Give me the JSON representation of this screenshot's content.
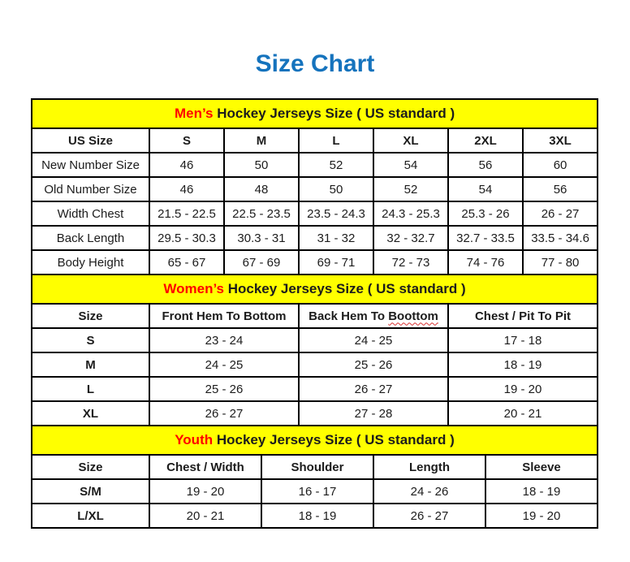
{
  "page": {
    "title": "Size Chart",
    "colors": {
      "title_blue": "#1573BD",
      "band_yellow": "#FFFF00",
      "highlight_red": "#FF0000",
      "text_black": "#1c1c1c",
      "border_black": "#000000"
    }
  },
  "sections": [
    {
      "id": "mens",
      "header": {
        "highlight": "Men’s",
        "rest": " Hockey Jerseys Size ( US standard )"
      },
      "columns": [
        "US Size",
        "S",
        "M",
        "L",
        "XL",
        "2XL",
        "3XL"
      ],
      "rows": [
        {
          "label": "New Number Size",
          "values": [
            "46",
            "50",
            "52",
            "54",
            "56",
            "60"
          ]
        },
        {
          "label": "Old Number Size",
          "values": [
            "46",
            "48",
            "50",
            "52",
            "54",
            "56"
          ]
        },
        {
          "label": "Width Chest",
          "values": [
            "21.5 - 22.5",
            "22.5 - 23.5",
            "23.5 - 24.3",
            "24.3 - 25.3",
            "25.3 - 26",
            "26 - 27"
          ]
        },
        {
          "label": "Back Length",
          "values": [
            "29.5 - 30.3",
            "30.3 - 31",
            "31 - 32",
            "32 - 32.7",
            "32.7 - 33.5",
            "33.5 - 34.6"
          ]
        },
        {
          "label": "Body Height",
          "values": [
            "65 - 67",
            "67 - 69",
            "69 - 71",
            "72 - 73",
            "74 - 76",
            "77 - 80"
          ]
        }
      ]
    },
    {
      "id": "womens",
      "header": {
        "highlight": "Women’s",
        "rest": " Hockey Jerseys Size ( US standard )"
      },
      "columns": [
        "Size",
        "Front Hem To Bottom",
        "Back Hem To Boottom",
        "Chest / Pit To Pit"
      ],
      "misspelled_column": {
        "before": "Back Hem To ",
        "word": "Boottom"
      },
      "rows": [
        {
          "label": "S",
          "values": [
            "23 - 24",
            "24 - 25",
            "17 - 18"
          ]
        },
        {
          "label": "M",
          "values": [
            "24 - 25",
            "25 - 26",
            "18 - 19"
          ]
        },
        {
          "label": "L",
          "values": [
            "25 - 26",
            "26 - 27",
            "19 - 20"
          ]
        },
        {
          "label": "XL",
          "values": [
            "26 - 27",
            "27 - 28",
            "20 - 21"
          ]
        }
      ]
    },
    {
      "id": "youth",
      "header": {
        "highlight": "Youth",
        "rest": " Hockey Jerseys Size ( US standard )"
      },
      "columns": [
        "Size",
        "Chest / Width",
        "Shoulder",
        "Length",
        "Sleeve"
      ],
      "rows": [
        {
          "label": "S/M",
          "values": [
            "19 - 20",
            "16 - 17",
            "24 - 26",
            "18 - 19"
          ]
        },
        {
          "label": "L/XL",
          "values": [
            "20 - 21",
            "18 - 19",
            "26 - 27",
            "19 - 20"
          ]
        }
      ]
    }
  ]
}
